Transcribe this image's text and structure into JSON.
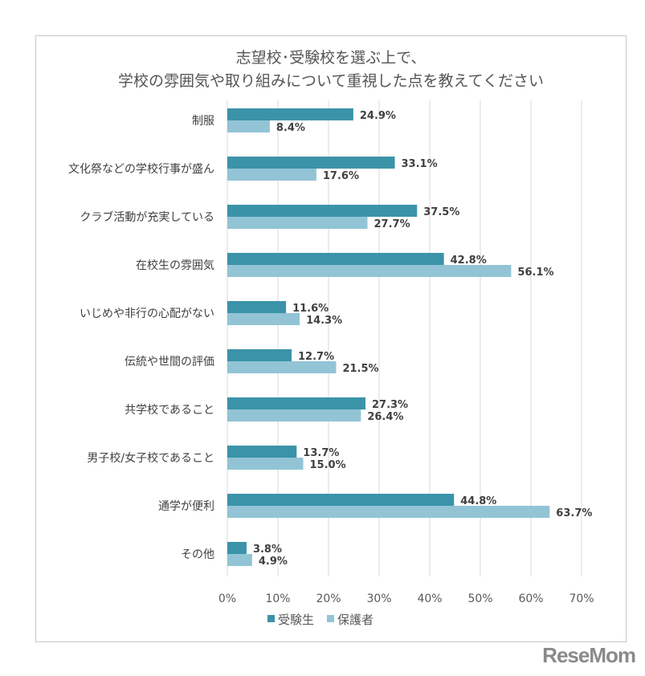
{
  "chart_data": {
    "type": "bar",
    "orientation": "horizontal",
    "title": [
      "志望校･受験校を選ぶ上で、",
      "学校の雰囲気や取り組みについて重視した点を教えてください"
    ],
    "categories": [
      "制服",
      "文化祭などの学校行事が盛ん",
      "クラブ活動が充実している",
      "在校生の雰囲気",
      "いじめや非行の心配がない",
      "伝統や世間の評価",
      "共学校であること",
      "男子校/女子校であること",
      "通学が便利",
      "その他"
    ],
    "series": [
      {
        "name": "受験生",
        "color": "#3b93a8",
        "values": [
          24.9,
          33.1,
          37.5,
          42.8,
          11.6,
          12.7,
          27.3,
          13.7,
          44.8,
          3.8
        ]
      },
      {
        "name": "保護者",
        "color": "#92c4d6",
        "values": [
          8.4,
          17.6,
          27.7,
          56.1,
          14.3,
          21.5,
          26.4,
          15.0,
          63.7,
          4.9
        ]
      }
    ],
    "xlim": [
      0,
      70
    ],
    "xticks": [
      "0%",
      "10%",
      "20%",
      "30%",
      "40%",
      "50%",
      "60%",
      "70%"
    ],
    "grid": true,
    "legend": "bottom"
  },
  "logo": "ReseMom"
}
